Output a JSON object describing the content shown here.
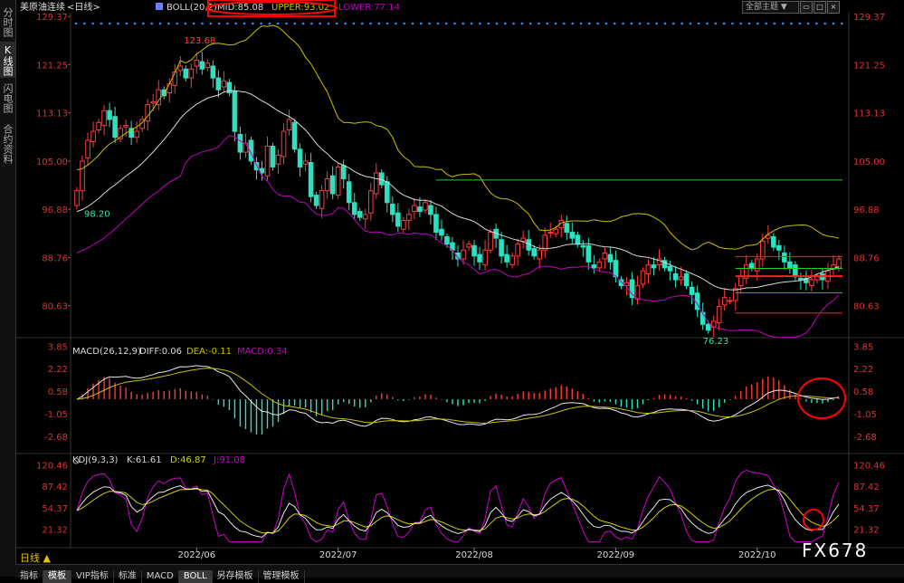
{
  "sidebar": {
    "tabs": [
      {
        "label": "分时图",
        "active": false
      },
      {
        "label": "K线图",
        "active": true
      },
      {
        "label": "闪电图",
        "active": false
      },
      {
        "label": "合约资料",
        "active": false
      }
    ]
  },
  "header": {
    "symbol": "美原油连续",
    "period": "<日线>",
    "boll_label": "BOLL(20,2)",
    "mid": "MID:85.08",
    "upper": "UPPER:93.02",
    "lower": "LOWER:77.14",
    "theme_dropdown": "全部主题"
  },
  "macd_header": {
    "label": "MACD(26,12,9)",
    "diff": "DIFF:0.06",
    "dea": "DEA:-0.11",
    "macd": "MACD:0.34"
  },
  "kdj_header": {
    "label": "KDJ(9,3,3)",
    "k": "K:61.61",
    "d": "D:46.87",
    "j": "J:91.08"
  },
  "bottom": {
    "period_button": "日线 ▲",
    "tabs": [
      "指标",
      "模板",
      "VIP指标",
      "标准",
      "MACD",
      "BOLL",
      "另存模板",
      "管理模板"
    ],
    "active_tabs": [
      "模板",
      "BOLL"
    ]
  },
  "watermark": "FX678",
  "colors": {
    "up": "#ff3a3a",
    "down": "#2de0c0",
    "mid": "#d8d8d8",
    "upper": "#c8c000",
    "lower": "#c000c0",
    "k": "#e8e8e8",
    "d": "#d0d000",
    "j": "#d000d0",
    "green_line": "#20d020",
    "red_line": "#ff2020",
    "annotation": "#ff0000"
  },
  "chart_data": [
    {
      "type": "candlestick",
      "title": "美原油连续 <日线> BOLL(20,2)",
      "x_labels": [
        "2022/06",
        "2022/07",
        "2022/08",
        "2022/09",
        "2022/10"
      ],
      "y_ticks": [
        "129.37",
        "121.25",
        "113.13",
        "105.00",
        "96.88",
        "88.76",
        "80.63"
      ],
      "ylim": [
        76.0,
        130.0
      ],
      "annotations": [
        {
          "text": "123.68",
          "kind": "high"
        },
        {
          "text": "98.20",
          "kind": "low-start"
        },
        {
          "text": "76.23",
          "kind": "low"
        }
      ],
      "horizontal_levels": [
        {
          "value": 101.8,
          "color": "green"
        },
        {
          "value": 88.9,
          "color": "red"
        },
        {
          "value": 86.9,
          "color": "green"
        },
        {
          "value": 85.6,
          "color": "red-thick"
        },
        {
          "value": 82.8,
          "color": "green"
        },
        {
          "value": 79.4,
          "color": "red"
        }
      ],
      "series": {
        "close": [
          100.0,
          105.0,
          108.5,
          110.0,
          111.5,
          113.5,
          112.0,
          109.0,
          110.5,
          111.0,
          109.0,
          110.0,
          112.0,
          114.5,
          115.0,
          117.0,
          116.0,
          118.0,
          120.0,
          121.0,
          119.0,
          120.5,
          122.0,
          120.5,
          121.5,
          119.0,
          117.0,
          118.5,
          116.5,
          110.0,
          106.5,
          108.0,
          105.0,
          103.5,
          103.0,
          107.5,
          104.0,
          106.0,
          110.0,
          112.0,
          107.0,
          104.0,
          105.0,
          99.0,
          97.5,
          100.0,
          102.0,
          99.5,
          104.0,
          102.0,
          98.0,
          96.0,
          95.5,
          96.0,
          100.0,
          103.0,
          101.0,
          98.0,
          96.0,
          94.0,
          95.0,
          96.0,
          97.5,
          96.5,
          98.0,
          96.0,
          93.0,
          92.5,
          91.0,
          90.0,
          88.5,
          90.0,
          91.0,
          89.0,
          88.0,
          90.0,
          93.0,
          92.0,
          89.0,
          88.0,
          89.0,
          91.0,
          92.0,
          90.0,
          89.0,
          90.0,
          92.5,
          93.0,
          93.5,
          95.0,
          93.0,
          92.0,
          91.0,
          90.5,
          88.0,
          87.0,
          88.0,
          89.5,
          88.0,
          85.5,
          84.0,
          84.5,
          82.0,
          84.0,
          86.5,
          87.5,
          87.0,
          88.5,
          87.0,
          86.5,
          85.0,
          85.5,
          84.0,
          82.5,
          80.0,
          77.5,
          76.5,
          78.0,
          80.5,
          82.0,
          81.5,
          83.5,
          85.5,
          87.5,
          87.0,
          88.5,
          91.5,
          92.5,
          90.5,
          90.0,
          88.0,
          87.0,
          85.5,
          85.0,
          84.5,
          85.0,
          85.5,
          85.0,
          86.5,
          87.5,
          88.5
        ],
        "mid_start": 96.5,
        "upper_start": 107.0,
        "lower_start": 93.0
      }
    },
    {
      "type": "bar+line",
      "title": "MACD(26,12,9)",
      "y_ticks": [
        "3.85",
        "2.22",
        "0.58",
        "-1.05",
        "-2.68"
      ],
      "ylim": [
        -3.6,
        4.0
      ]
    },
    {
      "type": "line",
      "title": "KDJ(9,3,3)",
      "y_ticks": [
        "120.46",
        "87.42",
        "54.37",
        "21.32"
      ],
      "ylim": [
        0,
        125
      ]
    }
  ]
}
